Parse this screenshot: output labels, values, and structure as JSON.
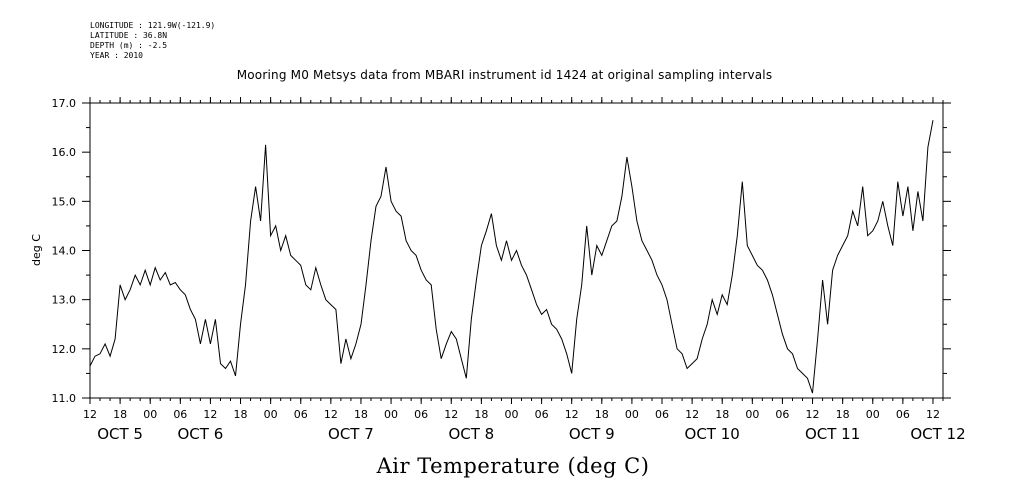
{
  "header": {
    "longitude": "LONGITUDE : 121.9W(-121.9)",
    "latitude": "LATITUDE : 36.8N",
    "depth": "DEPTH (m) : -2.5",
    "year": "YEAR : 2010"
  },
  "chart_data": {
    "type": "line",
    "title": "Mooring M0 Metsys data from MBARI instrument id 1424 at original sampling intervals",
    "ylabel": "deg C",
    "xlabel": "Air Temperature (deg C)",
    "ylim": [
      11.0,
      17.0
    ],
    "yticks": [
      "11.0",
      "12.0",
      "13.0",
      "14.0",
      "15.0",
      "16.0",
      "17.0"
    ],
    "xlim": [
      "2010-10-05 12:00",
      "2010-10-12 14:00"
    ],
    "hour_ticks": [
      "12",
      "18",
      "00",
      "06",
      "12",
      "18",
      "00",
      "06",
      "12",
      "18",
      "00",
      "06",
      "12",
      "18",
      "00",
      "06",
      "12",
      "18",
      "00",
      "06",
      "12",
      "18",
      "00",
      "06",
      "12",
      "18",
      "00",
      "06",
      "12"
    ],
    "day_labels": [
      "OCT  5",
      "OCT  6",
      "OCT  7",
      "OCT  8",
      "OCT  9",
      "OCT 10",
      "OCT 11",
      "OCT 12"
    ],
    "grid": false,
    "series": [
      {
        "color": "#000000",
        "points": [
          [
            "2010-10-05 12:00",
            11.65
          ],
          [
            "2010-10-05 13:00",
            11.85
          ],
          [
            "2010-10-05 14:00",
            11.9
          ],
          [
            "2010-10-05 15:00",
            12.1
          ],
          [
            "2010-10-05 16:00",
            11.85
          ],
          [
            "2010-10-05 17:00",
            12.2
          ],
          [
            "2010-10-05 18:00",
            13.3
          ],
          [
            "2010-10-05 19:00",
            13.0
          ],
          [
            "2010-10-05 20:00",
            13.2
          ],
          [
            "2010-10-05 21:00",
            13.5
          ],
          [
            "2010-10-05 22:00",
            13.3
          ],
          [
            "2010-10-05 23:00",
            13.6
          ],
          [
            "2010-10-06 00:00",
            13.3
          ],
          [
            "2010-10-06 01:00",
            13.65
          ],
          [
            "2010-10-06 02:00",
            13.4
          ],
          [
            "2010-10-06 03:00",
            13.55
          ],
          [
            "2010-10-06 04:00",
            13.3
          ],
          [
            "2010-10-06 05:00",
            13.35
          ],
          [
            "2010-10-06 06:00",
            13.2
          ],
          [
            "2010-10-06 07:00",
            13.1
          ],
          [
            "2010-10-06 08:00",
            12.8
          ],
          [
            "2010-10-06 09:00",
            12.6
          ],
          [
            "2010-10-06 10:00",
            12.1
          ],
          [
            "2010-10-06 11:00",
            12.6
          ],
          [
            "2010-10-06 12:00",
            12.1
          ],
          [
            "2010-10-06 13:00",
            12.6
          ],
          [
            "2010-10-06 14:00",
            11.7
          ],
          [
            "2010-10-06 15:00",
            11.6
          ],
          [
            "2010-10-06 16:00",
            11.75
          ],
          [
            "2010-10-06 17:00",
            11.45
          ],
          [
            "2010-10-06 18:00",
            12.5
          ],
          [
            "2010-10-06 19:00",
            13.3
          ],
          [
            "2010-10-06 20:00",
            14.6
          ],
          [
            "2010-10-06 21:00",
            15.3
          ],
          [
            "2010-10-06 22:00",
            14.6
          ],
          [
            "2010-10-06 23:00",
            16.15
          ],
          [
            "2010-10-07 00:00",
            14.3
          ],
          [
            "2010-10-07 01:00",
            14.5
          ],
          [
            "2010-10-07 02:00",
            14.0
          ],
          [
            "2010-10-07 03:00",
            14.3
          ],
          [
            "2010-10-07 04:00",
            13.9
          ],
          [
            "2010-10-07 05:00",
            13.8
          ],
          [
            "2010-10-07 06:00",
            13.7
          ],
          [
            "2010-10-07 07:00",
            13.3
          ],
          [
            "2010-10-07 08:00",
            13.2
          ],
          [
            "2010-10-07 09:00",
            13.65
          ],
          [
            "2010-10-07 10:00",
            13.3
          ],
          [
            "2010-10-07 11:00",
            13.0
          ],
          [
            "2010-10-07 12:00",
            12.9
          ],
          [
            "2010-10-07 13:00",
            12.8
          ],
          [
            "2010-10-07 14:00",
            11.7
          ],
          [
            "2010-10-07 15:00",
            12.2
          ],
          [
            "2010-10-07 16:00",
            11.8
          ],
          [
            "2010-10-07 17:00",
            12.1
          ],
          [
            "2010-10-07 18:00",
            12.5
          ],
          [
            "2010-10-07 19:00",
            13.3
          ],
          [
            "2010-10-07 20:00",
            14.2
          ],
          [
            "2010-10-07 21:00",
            14.9
          ],
          [
            "2010-10-07 22:00",
            15.1
          ],
          [
            "2010-10-07 23:00",
            15.7
          ],
          [
            "2010-10-08 00:00",
            15.0
          ],
          [
            "2010-10-08 01:00",
            14.8
          ],
          [
            "2010-10-08 02:00",
            14.7
          ],
          [
            "2010-10-08 03:00",
            14.2
          ],
          [
            "2010-10-08 04:00",
            14.0
          ],
          [
            "2010-10-08 05:00",
            13.9
          ],
          [
            "2010-10-08 06:00",
            13.6
          ],
          [
            "2010-10-08 07:00",
            13.4
          ],
          [
            "2010-10-08 08:00",
            13.3
          ],
          [
            "2010-10-08 09:00",
            12.4
          ],
          [
            "2010-10-08 10:00",
            11.8
          ],
          [
            "2010-10-08 11:00",
            12.1
          ],
          [
            "2010-10-08 12:00",
            12.35
          ],
          [
            "2010-10-08 13:00",
            12.2
          ],
          [
            "2010-10-08 14:00",
            11.8
          ],
          [
            "2010-10-08 15:00",
            11.4
          ],
          [
            "2010-10-08 16:00",
            12.6
          ],
          [
            "2010-10-08 17:00",
            13.4
          ],
          [
            "2010-10-08 18:00",
            14.1
          ],
          [
            "2010-10-08 19:00",
            14.4
          ],
          [
            "2010-10-08 20:00",
            14.75
          ],
          [
            "2010-10-08 21:00",
            14.1
          ],
          [
            "2010-10-08 22:00",
            13.8
          ],
          [
            "2010-10-08 23:00",
            14.2
          ],
          [
            "2010-10-09 00:00",
            13.8
          ],
          [
            "2010-10-09 01:00",
            14.0
          ],
          [
            "2010-10-09 02:00",
            13.7
          ],
          [
            "2010-10-09 03:00",
            13.5
          ],
          [
            "2010-10-09 04:00",
            13.2
          ],
          [
            "2010-10-09 05:00",
            12.9
          ],
          [
            "2010-10-09 06:00",
            12.7
          ],
          [
            "2010-10-09 07:00",
            12.8
          ],
          [
            "2010-10-09 08:00",
            12.5
          ],
          [
            "2010-10-09 09:00",
            12.4
          ],
          [
            "2010-10-09 10:00",
            12.2
          ],
          [
            "2010-10-09 11:00",
            11.9
          ],
          [
            "2010-10-09 12:00",
            11.5
          ],
          [
            "2010-10-09 13:00",
            12.6
          ],
          [
            "2010-10-09 14:00",
            13.3
          ],
          [
            "2010-10-09 15:00",
            14.5
          ],
          [
            "2010-10-09 16:00",
            13.5
          ],
          [
            "2010-10-09 17:00",
            14.1
          ],
          [
            "2010-10-09 18:00",
            13.9
          ],
          [
            "2010-10-09 19:00",
            14.2
          ],
          [
            "2010-10-09 20:00",
            14.5
          ],
          [
            "2010-10-09 21:00",
            14.6
          ],
          [
            "2010-10-09 22:00",
            15.1
          ],
          [
            "2010-10-09 23:00",
            15.9
          ],
          [
            "2010-10-10 00:00",
            15.3
          ],
          [
            "2010-10-10 01:00",
            14.6
          ],
          [
            "2010-10-10 02:00",
            14.2
          ],
          [
            "2010-10-10 03:00",
            14.0
          ],
          [
            "2010-10-10 04:00",
            13.8
          ],
          [
            "2010-10-10 05:00",
            13.5
          ],
          [
            "2010-10-10 06:00",
            13.3
          ],
          [
            "2010-10-10 07:00",
            13.0
          ],
          [
            "2010-10-10 08:00",
            12.5
          ],
          [
            "2010-10-10 09:00",
            12.0
          ],
          [
            "2010-10-10 10:00",
            11.9
          ],
          [
            "2010-10-10 11:00",
            11.6
          ],
          [
            "2010-10-10 12:00",
            11.7
          ],
          [
            "2010-10-10 13:00",
            11.8
          ],
          [
            "2010-10-10 14:00",
            12.2
          ],
          [
            "2010-10-10 15:00",
            12.5
          ],
          [
            "2010-10-10 16:00",
            13.0
          ],
          [
            "2010-10-10 17:00",
            12.7
          ],
          [
            "2010-10-10 18:00",
            13.1
          ],
          [
            "2010-10-10 19:00",
            12.9
          ],
          [
            "2010-10-10 20:00",
            13.5
          ],
          [
            "2010-10-10 21:00",
            14.3
          ],
          [
            "2010-10-10 22:00",
            15.4
          ],
          [
            "2010-10-10 23:00",
            14.1
          ],
          [
            "2010-10-11 00:00",
            13.9
          ],
          [
            "2010-10-11 01:00",
            13.7
          ],
          [
            "2010-10-11 02:00",
            13.6
          ],
          [
            "2010-10-11 03:00",
            13.4
          ],
          [
            "2010-10-11 04:00",
            13.1
          ],
          [
            "2010-10-11 05:00",
            12.7
          ],
          [
            "2010-10-11 06:00",
            12.3
          ],
          [
            "2010-10-11 07:00",
            12.0
          ],
          [
            "2010-10-11 08:00",
            11.9
          ],
          [
            "2010-10-11 09:00",
            11.6
          ],
          [
            "2010-10-11 10:00",
            11.5
          ],
          [
            "2010-10-11 11:00",
            11.4
          ],
          [
            "2010-10-11 12:00",
            11.1
          ],
          [
            "2010-10-11 13:00",
            12.2
          ],
          [
            "2010-10-11 14:00",
            13.4
          ],
          [
            "2010-10-11 15:00",
            12.5
          ],
          [
            "2010-10-11 16:00",
            13.6
          ],
          [
            "2010-10-11 17:00",
            13.9
          ],
          [
            "2010-10-11 18:00",
            14.1
          ],
          [
            "2010-10-11 19:00",
            14.3
          ],
          [
            "2010-10-11 20:00",
            14.8
          ],
          [
            "2010-10-11 21:00",
            14.5
          ],
          [
            "2010-10-11 22:00",
            15.3
          ],
          [
            "2010-10-11 23:00",
            14.3
          ],
          [
            "2010-10-12 00:00",
            14.4
          ],
          [
            "2010-10-12 01:00",
            14.6
          ],
          [
            "2010-10-12 02:00",
            15.0
          ],
          [
            "2010-10-12 03:00",
            14.5
          ],
          [
            "2010-10-12 04:00",
            14.1
          ],
          [
            "2010-10-12 05:00",
            15.4
          ],
          [
            "2010-10-12 06:00",
            14.7
          ],
          [
            "2010-10-12 07:00",
            15.3
          ],
          [
            "2010-10-12 08:00",
            14.4
          ],
          [
            "2010-10-12 09:00",
            15.2
          ],
          [
            "2010-10-12 10:00",
            14.6
          ],
          [
            "2010-10-12 11:00",
            16.1
          ],
          [
            "2010-10-12 12:00",
            16.65
          ]
        ]
      }
    ]
  }
}
